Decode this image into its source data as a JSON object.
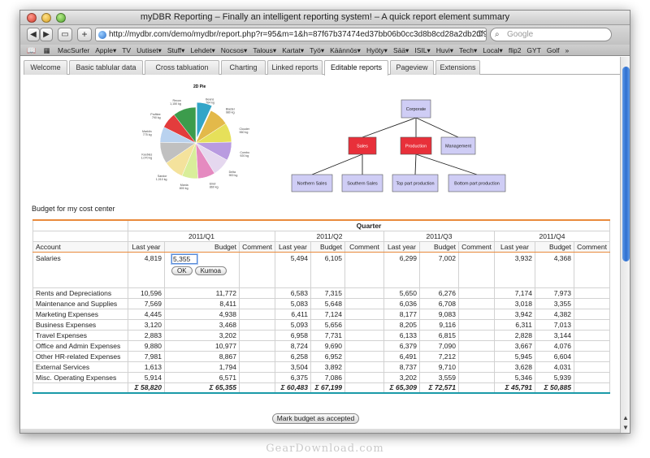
{
  "window": {
    "title": "myDBR Reporting – Finally an intelligent reporting system! – A quick report element summary"
  },
  "toolbar": {
    "back": "◀",
    "forward": "▶",
    "add": "+",
    "tabs": "▭"
  },
  "address": {
    "url": "http://mydbr.com/demo/mydbr/report.php?r=95&m=1&h=87f67b37474ed37bb06b0cc3d8b8cd28a2db2df9",
    "reload": "C"
  },
  "search": {
    "placeholder": "Google"
  },
  "bookmarks": [
    "MacSurfer",
    "Apple▾",
    "TV",
    "Uutiset▾",
    "Stuff▾",
    "Lehdet▾",
    "Nocsos▾",
    "Talous▾",
    "Kartat▾",
    "Työ▾",
    "Käännös▾",
    "Hyöty▾",
    "Sää▾",
    "ISIL▾",
    "Huvi▾",
    "Tech▾",
    "Local▾",
    "flip2",
    "GYT",
    "Golf",
    "»"
  ],
  "tabs": [
    {
      "label": "Welcome"
    },
    {
      "label": "Basic tablular data"
    },
    {
      "label": "Cross tabluation"
    },
    {
      "label": "Charting"
    },
    {
      "label": "Linked reports"
    },
    {
      "label": "Editable reports",
      "active": true
    },
    {
      "label": "Pageview"
    },
    {
      "label": "Extensions"
    }
  ],
  "pie": {
    "title": "2D Pie",
    "slices": [
      {
        "name": "Beans",
        "value": 764,
        "unit": "764 kg",
        "color": "#33a5c8"
      },
      {
        "name": "Blaster",
        "value": 980,
        "unit": "980 kg",
        "color": "#e3b94a"
      },
      {
        "name": "Clouder",
        "value": 960,
        "unit": "960 kg",
        "color": "#e6e05a"
      },
      {
        "name": "Combo",
        "value": 920,
        "unit": "920 kg",
        "color": "#b99be0"
      },
      {
        "name": "Delta",
        "value": 900,
        "unit": "900 kg",
        "color": "#e5d8ef"
      },
      {
        "name": "Elixir",
        "value": 860,
        "unit": "860 kg",
        "color": "#e58ac0"
      },
      {
        "name": "Mania",
        "value": 800,
        "unit": "800 kg",
        "color": "#d9ee9a"
      },
      {
        "name": "Sandor",
        "value": 1010,
        "unit": "1,010 kg",
        "color": "#f4e29c"
      },
      {
        "name": "Keebles",
        "value": 1070,
        "unit": "1,070 kg",
        "color": "#c0c0c0"
      },
      {
        "name": "Marklin",
        "value": 775,
        "unit": "775 kg",
        "color": "#b9d2ef"
      },
      {
        "name": "Profitee",
        "value": 790,
        "unit": "790 kg",
        "color": "#e33c3c"
      },
      {
        "name": "Recon",
        "value": 1150,
        "unit": "1,150 kg",
        "color": "#3c9c4c"
      }
    ]
  },
  "orgchart": {
    "root": "Corporate",
    "level2": [
      {
        "label": "Sales"
      },
      {
        "label": "Production"
      },
      {
        "label": "Management"
      }
    ],
    "level3": [
      {
        "label": "Northern Sales"
      },
      {
        "label": "Southern Sales"
      },
      {
        "label": "Top part production"
      },
      {
        "label": "Bottom part production"
      }
    ]
  },
  "report": {
    "caption": "Budget for my cost center",
    "group_header": "Quarter",
    "account_header": "Account",
    "quarters": [
      "2011/Q1",
      "2011/Q2",
      "2011/Q3",
      "2011/Q4"
    ],
    "subheaders": [
      "Last year",
      "Budget",
      "Comment"
    ],
    "edit_value": "5,355",
    "ok_label": "OK",
    "cancel_label": "Kumoa",
    "rows": [
      {
        "account": "Salaries",
        "v": [
          "4,819",
          "",
          "5,494",
          "6,105",
          "6,299",
          "7,002",
          "3,932",
          "4,368"
        ]
      },
      {
        "account": "Rents and Depreciations",
        "v": [
          "10,596",
          "11,772",
          "6,583",
          "7,315",
          "5,650",
          "6,276",
          "7,174",
          "7,973"
        ]
      },
      {
        "account": "Maintenance and Supplies",
        "v": [
          "7,569",
          "8,411",
          "5,083",
          "5,648",
          "6,036",
          "6,708",
          "3,018",
          "3,355"
        ]
      },
      {
        "account": "Marketing Expenses",
        "v": [
          "4,445",
          "4,938",
          "6,411",
          "7,124",
          "8,177",
          "9,083",
          "3,942",
          "4,382"
        ]
      },
      {
        "account": "Business Expenses",
        "v": [
          "3,120",
          "3,468",
          "5,093",
          "5,656",
          "8,205",
          "9,116",
          "6,311",
          "7,013"
        ]
      },
      {
        "account": "Travel Expenses",
        "v": [
          "2,883",
          "3,202",
          "6,958",
          "7,731",
          "6,133",
          "6,815",
          "2,828",
          "3,144"
        ]
      },
      {
        "account": "Office and Admin Expenses",
        "v": [
          "9,880",
          "10,977",
          "8,724",
          "9,690",
          "6,379",
          "7,090",
          "3,667",
          "4,076"
        ]
      },
      {
        "account": "Other HR-related Expenses",
        "v": [
          "7,981",
          "8,867",
          "6,258",
          "6,952",
          "6,491",
          "7,212",
          "5,945",
          "6,604"
        ]
      },
      {
        "account": "External Services",
        "v": [
          "1,613",
          "1,794",
          "3,504",
          "3,892",
          "8,737",
          "9,710",
          "3,628",
          "4,031"
        ]
      },
      {
        "account": "Misc. Operating Expenses",
        "v": [
          "5,914",
          "6,571",
          "6,375",
          "7,086",
          "3,202",
          "3,559",
          "5,346",
          "5,939"
        ]
      }
    ],
    "totals": [
      "Σ 58,820",
      "Σ 65,355",
      "Σ 60,483",
      "Σ 67,199",
      "Σ 65,309",
      "Σ 72,571",
      "Σ 45,791",
      "Σ 50,885"
    ],
    "accept_label": "Mark budget as accepted"
  },
  "watermark": "GearDownload.com",
  "colors": {
    "accent": "#e98a3c",
    "total_rule": "#1a9aa8",
    "org_red": "#e8303a",
    "org_lilac": "#cfcdf5"
  }
}
